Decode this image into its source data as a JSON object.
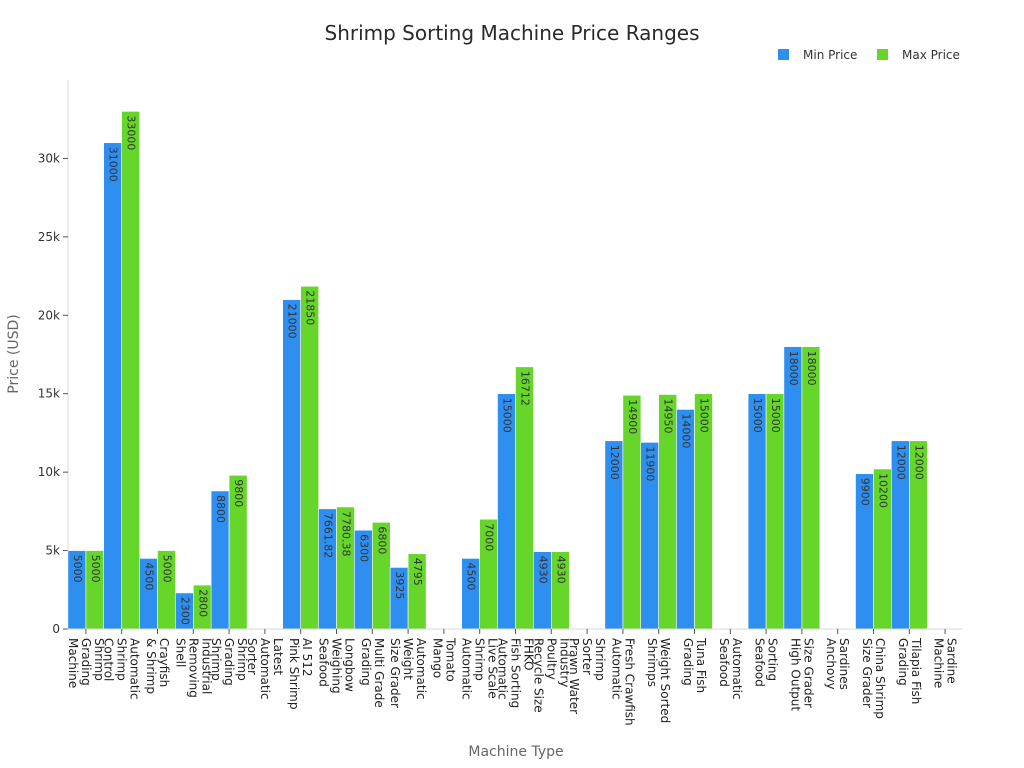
{
  "chart_data": {
    "type": "bar",
    "title": "Shrimp Sorting Machine Price Ranges",
    "xlabel": "Machine Type",
    "ylabel": "Price (USD)",
    "ylim": [
      0,
      35000
    ],
    "yticks": [
      0,
      5000,
      10000,
      15000,
      20000,
      25000,
      30000
    ],
    "ytick_labels": [
      "0",
      "5k",
      "10k",
      "15k",
      "20k",
      "25k",
      "30k"
    ],
    "legend_position": "top-right",
    "categories": [
      "Shrimp Grading Machine",
      "Automatic Shrimp Control",
      "Crayfish & Shrimp",
      "Industrial Removing Shell",
      "Shrimp Grading Shrimp",
      "Latest Automatic Sorter",
      "AI 512 Pink Shrimp",
      "Longbow Weighing Seafood",
      "Multi Grade Grading",
      "Automatic Weight Size Grader",
      "Tomato Mango",
      "Live Scale Shrimp Automatic",
      "FHKO Fish Sorting Automatic",
      "Industry Poultry Recycle Size",
      "Shrimp Sorter Prawn Water",
      "Fresh Crawfish Automatic",
      "Weight Sorted Shrimps",
      "Tuna Fish Grading",
      "Automatic Seafood",
      "Sorting Seafood",
      "Size Grader High Output",
      "Sardines Anchovy",
      "China Shrimp Size Grader",
      "Tilapia Fish Grading",
      "Sardine Machine"
    ],
    "category_lines": [
      [
        "Shrimp",
        "Grading",
        "Machine"
      ],
      [
        "Automatic",
        "Shrimp",
        "Control"
      ],
      [
        "Crayfish",
        "& Shrimp"
      ],
      [
        "Industrial",
        "Removing",
        "Shell"
      ],
      [
        "Shrimp",
        "Grading",
        "Shrimp"
      ],
      [
        "Latest",
        "Automatic",
        "Sorter"
      ],
      [
        "AI 512",
        "Pink Shrimp"
      ],
      [
        "Longbow",
        "Weighing",
        "Seafood"
      ],
      [
        "Multi Grade",
        "Grading"
      ],
      [
        "Automatic",
        "Weight",
        "Size Grader"
      ],
      [
        "Tomato",
        "Mango"
      ],
      [
        "Live Scale",
        "Shrimp",
        "Automatic"
      ],
      [
        "FHKO",
        "Fish Sorting",
        "Automatic"
      ],
      [
        "Industry",
        "Poultry",
        "Recycle Size"
      ],
      [
        "Shrimp",
        "Sorter",
        "Prawn Water"
      ],
      [
        "Fresh Crawfish",
        "Automatic"
      ],
      [
        "Weight Sorted",
        "Shrimps"
      ],
      [
        "Tuna Fish",
        "Grading"
      ],
      [
        "Automatic",
        "Seafood"
      ],
      [
        "Sorting",
        "Seafood"
      ],
      [
        "Size Grader",
        "High Output"
      ],
      [
        "Sardines",
        "Anchovy"
      ],
      [
        "China Shrimp",
        "Size Grader"
      ],
      [
        "Tilapia Fish",
        "Grading"
      ],
      [
        "Sardine",
        "Machine"
      ]
    ],
    "series": [
      {
        "name": "Min Price",
        "color": "#2f8ff0",
        "values": [
          5000,
          31000,
          4500,
          2300,
          8800,
          null,
          21000,
          7661.82,
          6300,
          3925,
          null,
          4500,
          15000,
          4930,
          null,
          12000,
          11900,
          14000,
          null,
          15000,
          18000,
          null,
          9900,
          12000,
          null
        ],
        "labels": [
          "5000",
          "31000",
          "4500",
          "2300",
          "8800",
          "",
          "21000",
          "7661.82",
          "6300",
          "3925",
          "",
          "4500",
          "15000",
          "4930",
          "",
          "12000",
          "11900",
          "14000",
          "",
          "15000",
          "18000",
          "",
          "9900",
          "12000",
          ""
        ]
      },
      {
        "name": "Max Price",
        "color": "#66d62a",
        "values": [
          5000,
          33000,
          5000,
          2800,
          9800,
          null,
          21850,
          7780.38,
          6800,
          4795,
          null,
          7000,
          16712,
          4930,
          null,
          14900,
          14950,
          15000,
          null,
          15000,
          18000,
          null,
          10200,
          12000,
          null
        ],
        "labels": [
          "5000",
          "33000",
          "5000",
          "2800",
          "9800",
          "",
          "21850",
          "7780.38",
          "6800",
          "4795",
          "",
          "7000",
          "16712",
          "4930",
          "",
          "14900",
          "14950",
          "15000",
          "",
          "15000",
          "18000",
          "",
          "10200",
          "12000",
          ""
        ]
      }
    ]
  }
}
